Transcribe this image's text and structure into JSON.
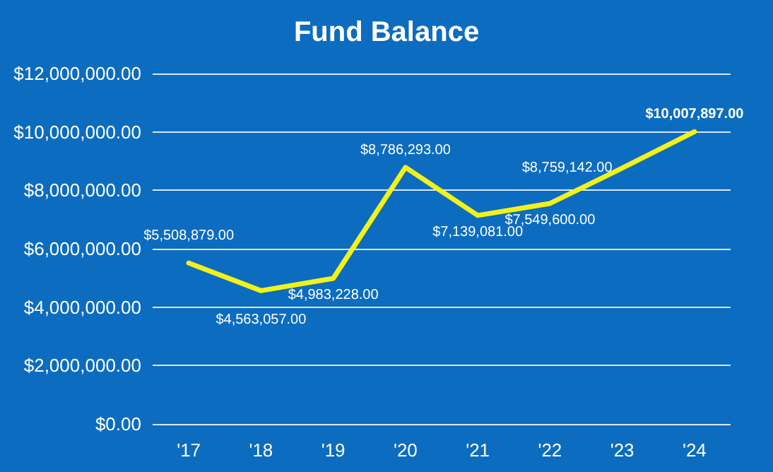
{
  "chart_data": {
    "type": "line",
    "title": "Fund Balance",
    "categories": [
      "'17",
      "'18",
      "'19",
      "'20",
      "'21",
      "'22",
      "'23",
      "'24"
    ],
    "series": [
      {
        "color": "#f2f21a",
        "values": [
          5508879,
          4563057,
          4983228,
          8786293,
          7139081,
          7549600,
          8759142,
          10007897
        ],
        "value_labels": [
          "$5,508,879.00",
          "$4,563,057.00",
          "$4,983,228.00",
          "$8,786,293.00",
          "$7,139,081.00",
          "$7,549,600.00",
          "$8,759,142.00",
          "$10,007,897.00"
        ]
      }
    ],
    "ylim": [
      0,
      12000000
    ],
    "yticks": [
      {
        "value": 0,
        "label": "$0.00"
      },
      {
        "value": 2000000,
        "label": "$2,000,000.00"
      },
      {
        "value": 4000000,
        "label": "$4,000,000.00"
      },
      {
        "value": 6000000,
        "label": "$6,000,000.00"
      },
      {
        "value": 8000000,
        "label": "$8,000,000.00"
      },
      {
        "value": 10000000,
        "label": "$10,000,000.00"
      },
      {
        "value": 12000000,
        "label": "$12,000,000.00"
      }
    ],
    "grid": "y",
    "marker": "none",
    "line_style": "solid"
  }
}
